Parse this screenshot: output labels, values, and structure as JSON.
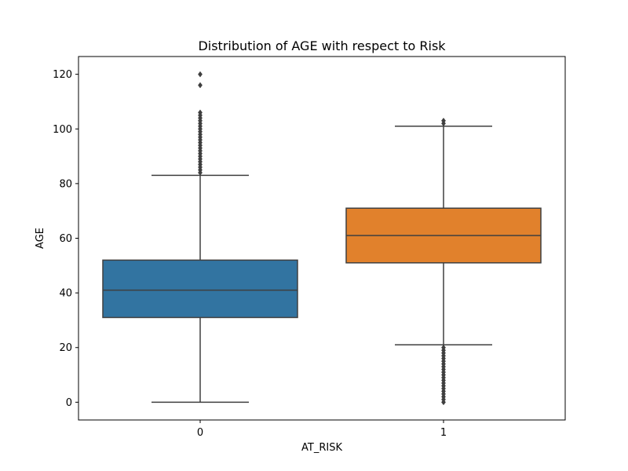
{
  "chart_data": {
    "type": "box",
    "title": "Distribution of AGE with respect to Risk",
    "xlabel": "AT_RISK",
    "ylabel": "AGE",
    "categories": [
      "0",
      "1"
    ],
    "ylim": [
      -6.5,
      126.5
    ],
    "yticks": [
      0,
      20,
      40,
      60,
      80,
      100,
      120
    ],
    "grid": false,
    "legend": "none",
    "series": [
      {
        "category": "0",
        "color": "#3274a1",
        "whisker_low": 0,
        "q1": 31,
        "median": 41,
        "q3": 52,
        "whisker_high": 83,
        "outliers": [
          84,
          85,
          86,
          87,
          88,
          89,
          90,
          91,
          92,
          93,
          94,
          95,
          96,
          97,
          98,
          99,
          100,
          101,
          102,
          103,
          104,
          105,
          106,
          116,
          120
        ]
      },
      {
        "category": "1",
        "color": "#e1812c",
        "whisker_low": 21,
        "q1": 51,
        "median": 61,
        "q3": 71,
        "whisker_high": 101,
        "outliers": [
          0,
          1,
          2,
          3,
          4,
          5,
          6,
          7,
          8,
          9,
          10,
          11,
          12,
          13,
          14,
          15,
          16,
          17,
          18,
          19,
          20,
          102,
          103
        ]
      }
    ]
  }
}
